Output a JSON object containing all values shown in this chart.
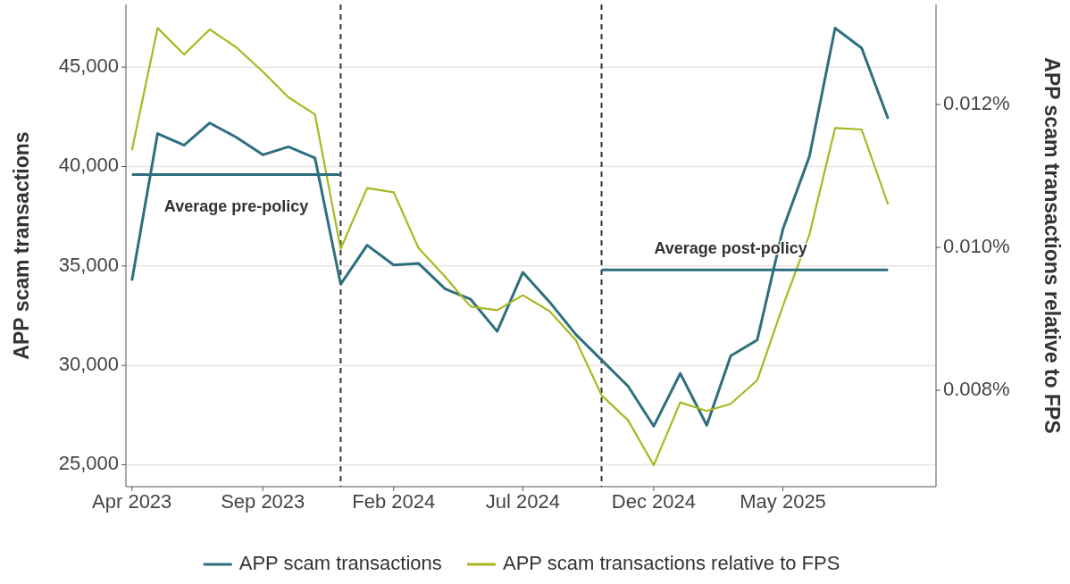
{
  "chart_data": {
    "type": "line",
    "ylabel": "APP scam transactions",
    "y2label": "APP scam transactions relative to FPS",
    "x": [
      "2023-04",
      "2023-05",
      "2023-06",
      "2023-07",
      "2023-08",
      "2023-09",
      "2023-10",
      "2023-11",
      "2023-12",
      "2024-01",
      "2024-02",
      "2024-03",
      "2024-04",
      "2024-05",
      "2024-06",
      "2024-07",
      "2024-08",
      "2024-09",
      "2024-10",
      "2024-11",
      "2024-12",
      "2025-01",
      "2025-02",
      "2025-03",
      "2025-04",
      "2025-05",
      "2025-06",
      "2025-07",
      "2025-08",
      "2025-09"
    ],
    "series": [
      {
        "name": "APP scam transactions",
        "color": "#2e6f7e",
        "values": [
          34260,
          41660,
          41070,
          42190,
          41470,
          40590,
          40990,
          40430,
          34080,
          36040,
          35050,
          35130,
          33850,
          33320,
          31710,
          34680,
          33200,
          31550,
          30270,
          28950,
          26940,
          29590,
          26990,
          30480,
          31280,
          36850,
          40510,
          46960,
          45960,
          42400
        ]
      },
      {
        "name": "APP scam transactions relative to FPS",
        "color": "#a8b820",
        "axis": "y2",
        "values": [
          0.01136,
          0.01307,
          0.0127,
          0.01305,
          0.0128,
          0.01246,
          0.0121,
          0.01186,
          0.00998,
          0.01083,
          0.01077,
          0.00999,
          0.00959,
          0.00917,
          0.00912,
          0.00933,
          0.00911,
          0.0087,
          0.00793,
          0.00758,
          0.00695,
          0.00783,
          0.00771,
          0.00781,
          0.00814,
          0.00918,
          0.01018,
          0.01167,
          0.01165,
          0.0106
        ]
      },
      {
        "type": "line",
        "color": "#2e6f7e",
        "x": [
          "2023-04",
          "2023-12"
        ],
        "values": [
          39600,
          39600
        ]
      },
      {
        "type": "line",
        "color": "#2e6f7e",
        "x": [
          "2024-10",
          "2025-09"
        ],
        "values": [
          34800,
          34800
        ]
      }
    ],
    "xlim": [
      "2023-03-25",
      "2025-10-27"
    ],
    "xticks": [
      {
        "value": "2023-04",
        "label": "Apr 2023"
      },
      {
        "value": "2023-09",
        "label": "Sep 2023"
      },
      {
        "value": "2024-02",
        "label": "Feb 2024"
      },
      {
        "value": "2024-07",
        "label": "Jul 2024"
      },
      {
        "value": "2024-12",
        "label": "Dec 2024"
      },
      {
        "value": "2025-05",
        "label": "May 2025"
      }
    ],
    "ylim": [
      23900,
      48150
    ],
    "yticks": [
      {
        "value": 25000,
        "label": "25,000"
      },
      {
        "value": 30000,
        "label": "30,000"
      },
      {
        "value": 35000,
        "label": "35,000"
      },
      {
        "value": 40000,
        "label": "40,000"
      },
      {
        "value": 45000,
        "label": "45,000"
      }
    ],
    "y2lim": [
      0.00665,
      0.0134
    ],
    "y2ticks": [
      {
        "value": 0.008,
        "label": "0.008%"
      },
      {
        "value": 0.01,
        "label": "0.010%"
      },
      {
        "value": 0.012,
        "label": "0.012%"
      }
    ],
    "ref_lines": [
      {
        "axis": "x",
        "value": "2023-12",
        "color": "#333333",
        "line_style": "dashed"
      },
      {
        "axis": "x",
        "value": "2024-10",
        "color": "#333333",
        "line_style": "dashed"
      }
    ],
    "annotations": [
      {
        "text": "Average pre-policy",
        "x": "2023-08",
        "y": 39600
      },
      {
        "text": "Average post-policy",
        "x": "2025-03",
        "y": 34800
      }
    ],
    "grid": "y",
    "legend": "bottom",
    "line_style": "solid",
    "marker": "none"
  }
}
